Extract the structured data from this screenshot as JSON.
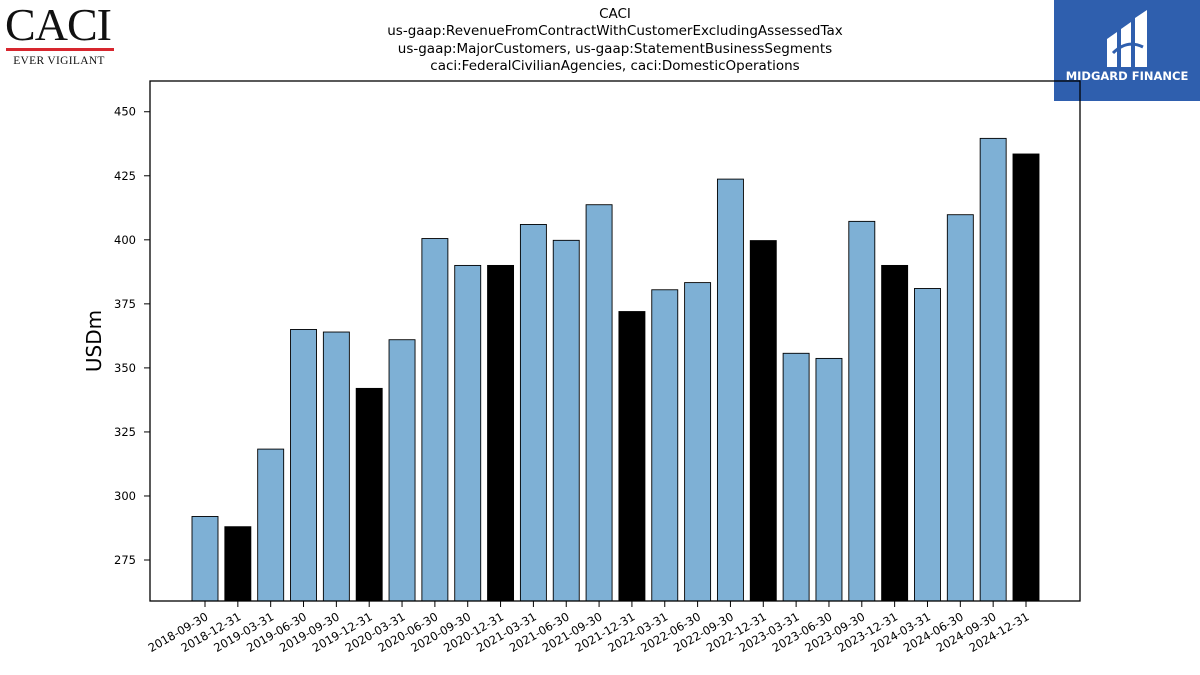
{
  "header": {
    "company_logo_text": "CACI",
    "company_tagline": "EVER VIGILANT",
    "title_lines": [
      "CACI",
      "us-gaap:RevenueFromContractWithCustomerExcludingAssessedTax",
      "us-gaap:MajorCustomers, us-gaap:StatementBusinessSegments",
      "caci:FederalCivilianAgencies, caci:DomesticOperations"
    ],
    "publisher_logo_text": "MIDGARD FINANCE"
  },
  "colors": {
    "quarter_bar": "#7eb0d5",
    "year_end_bar": "#000000",
    "logo_background": "#2f5fae",
    "logo_rule": "#d7262e"
  },
  "chart_data": {
    "type": "bar",
    "ylabel": "USDm",
    "xlabel": "",
    "ylim": [
      259,
      462
    ],
    "yticks": [
      275,
      300,
      325,
      350,
      375,
      400,
      425,
      450
    ],
    "grid": false,
    "legend": "none",
    "categories": [
      "2018-09-30",
      "2018-12-31",
      "2019-03-31",
      "2019-06-30",
      "2019-09-30",
      "2019-12-31",
      "2020-03-31",
      "2020-06-30",
      "2020-09-30",
      "2020-12-31",
      "2021-03-31",
      "2021-06-30",
      "2021-09-30",
      "2021-12-31",
      "2022-03-31",
      "2022-06-30",
      "2022-09-30",
      "2022-12-31",
      "2023-03-31",
      "2023-06-30",
      "2023-09-30",
      "2023-12-31",
      "2024-03-31",
      "2024-06-30",
      "2024-09-30",
      "2024-12-31"
    ],
    "values": [
      292,
      288,
      318.3,
      365,
      364,
      342,
      361,
      400.5,
      390,
      390,
      406,
      399.8,
      413.7,
      372,
      380.5,
      383.3,
      423.7,
      399.7,
      355.7,
      353.7,
      407.2,
      390,
      381,
      409.8,
      439.6,
      433.5
    ],
    "year_end_flags": [
      false,
      true,
      false,
      false,
      false,
      true,
      false,
      false,
      false,
      true,
      false,
      false,
      false,
      true,
      false,
      false,
      false,
      true,
      false,
      false,
      false,
      true,
      false,
      false,
      false,
      true
    ]
  }
}
